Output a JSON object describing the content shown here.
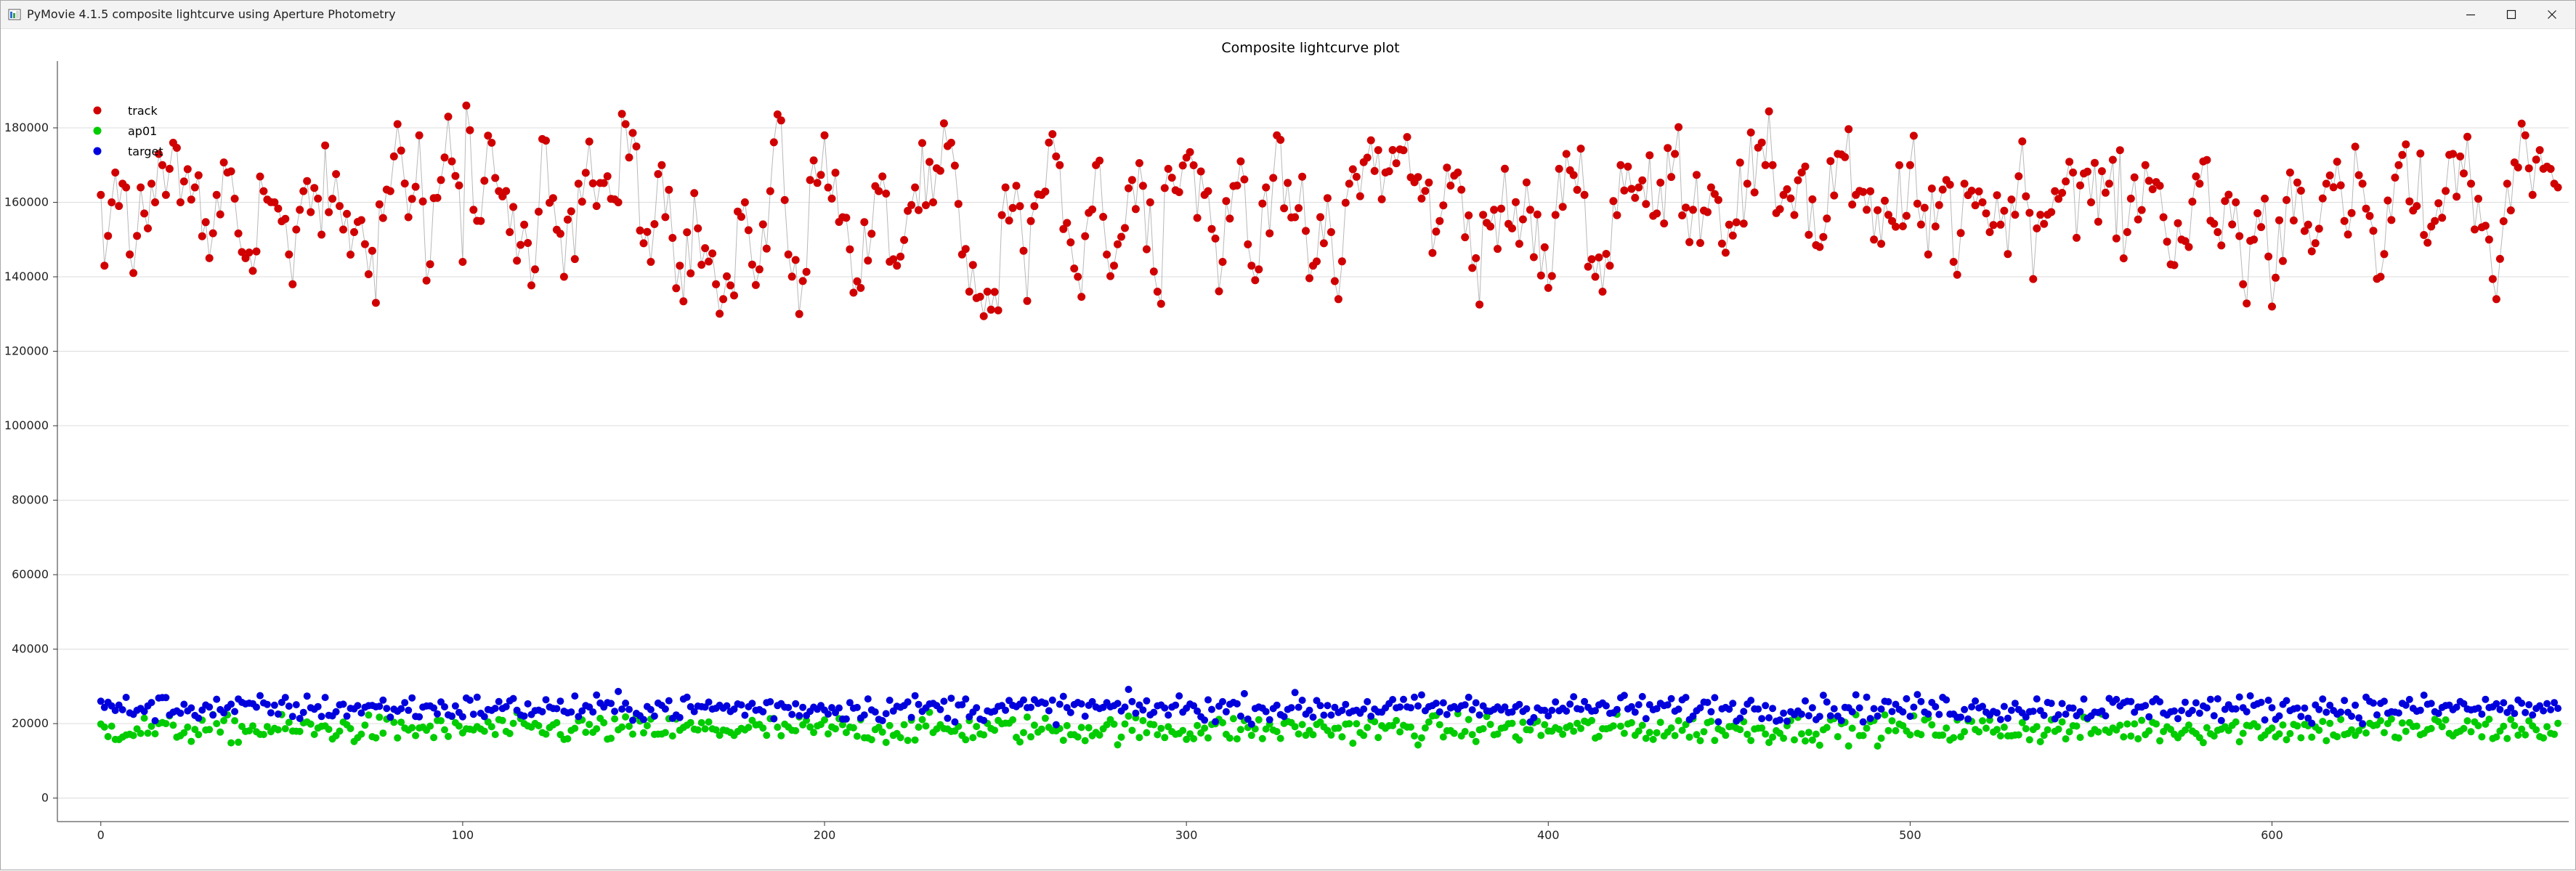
{
  "window": {
    "title": "PyMovie 4.1.5 composite lightcurve using Aperture Photometry",
    "minimize_icon": "minimize-icon",
    "maximize_icon": "maximize-icon",
    "close_icon": "close-icon",
    "app_icon": "pymovie-app-icon"
  },
  "chart_data": {
    "type": "scatter",
    "title": "Composite lightcurve plot",
    "xlabel": "",
    "ylabel": "",
    "xlim": [
      -12,
      682
    ],
    "ylim": [
      -3000,
      196000
    ],
    "xticks": [
      0,
      100,
      200,
      300,
      400,
      500,
      600
    ],
    "xtick_labels": [
      "0",
      "100",
      "200",
      "300",
      "400",
      "500",
      "600"
    ],
    "yticks": [
      0,
      20000,
      40000,
      60000,
      80000,
      100000,
      120000,
      140000,
      160000,
      180000
    ],
    "ytick_labels": [
      "0",
      "20000",
      "40000",
      "60000",
      "80000",
      "100000",
      "120000",
      "140000",
      "160000",
      "180000"
    ],
    "grid": "horizontal",
    "legend_position": "top-left",
    "x_start": 0,
    "x_count": 680,
    "series": [
      {
        "name": "track",
        "color": "#d00000",
        "connect_line": true,
        "line_color": "#b8b8b8",
        "anchors": [
          [
            0,
            162000
          ],
          [
            1,
            143000
          ],
          [
            2,
            151000
          ],
          [
            3,
            160000
          ],
          [
            4,
            168000
          ],
          [
            5,
            159000
          ],
          [
            6,
            165000
          ],
          [
            7,
            164000
          ],
          [
            8,
            146000
          ],
          [
            9,
            141000
          ],
          [
            10,
            151000
          ],
          [
            11,
            164000
          ],
          [
            12,
            157000
          ],
          [
            13,
            153000
          ],
          [
            14,
            165000
          ],
          [
            15,
            160000
          ],
          [
            16,
            173000
          ],
          [
            17,
            170000
          ],
          [
            18,
            162000
          ],
          [
            19,
            169000
          ],
          [
            20,
            176000
          ],
          [
            22,
            160000
          ],
          [
            26,
            164000
          ],
          [
            30,
            145000
          ],
          [
            32,
            162000
          ],
          [
            35,
            168000
          ],
          [
            40,
            145000
          ],
          [
            45,
            163000
          ],
          [
            48,
            160000
          ],
          [
            52,
            146000
          ],
          [
            53,
            138000
          ],
          [
            56,
            163000
          ],
          [
            60,
            161000
          ],
          [
            66,
            159000
          ],
          [
            70,
            152000
          ],
          [
            75,
            147000
          ],
          [
            80,
            163000
          ],
          [
            82,
            181000
          ],
          [
            85,
            156000
          ],
          [
            88,
            178000
          ],
          [
            90,
            139000
          ],
          [
            94,
            166000
          ],
          [
            96,
            183000
          ],
          [
            100,
            144000
          ],
          [
            101,
            186000
          ],
          [
            103,
            158000
          ],
          [
            105,
            155000
          ],
          [
            108,
            176000
          ],
          [
            110,
            163000
          ],
          [
            113,
            152000
          ],
          [
            117,
            154000
          ],
          [
            120,
            142000
          ],
          [
            122,
            177000
          ],
          [
            128,
            140000
          ],
          [
            132,
            165000
          ],
          [
            137,
            159000
          ],
          [
            140,
            167000
          ],
          [
            143,
            160000
          ],
          [
            145,
            181000
          ],
          [
            148,
            175000
          ],
          [
            150,
            149000
          ],
          [
            155,
            170000
          ],
          [
            160,
            143000
          ],
          [
            165,
            153000
          ],
          [
            170,
            138000
          ],
          [
            172,
            134000
          ],
          [
            175,
            135000
          ],
          [
            178,
            160000
          ],
          [
            182,
            142000
          ],
          [
            185,
            163000
          ],
          [
            188,
            182000
          ],
          [
            190,
            146000
          ],
          [
            193,
            130000
          ],
          [
            196,
            166000
          ],
          [
            200,
            178000
          ],
          [
            202,
            161000
          ],
          [
            205,
            156000
          ],
          [
            210,
            137000
          ],
          [
            215,
            163000
          ],
          [
            220,
            143000
          ],
          [
            225,
            164000
          ],
          [
            230,
            160000
          ],
          [
            235,
            176000
          ],
          [
            238,
            146000
          ],
          [
            240,
            136000
          ],
          [
            245,
            136000
          ],
          [
            248,
            131000
          ],
          [
            250,
            164000
          ],
          [
            255,
            147000
          ],
          [
            260,
            162000
          ],
          [
            265,
            170000
          ],
          [
            270,
            140000
          ],
          [
            275,
            170000
          ],
          [
            280,
            143000
          ],
          [
            285,
            166000
          ],
          [
            290,
            160000
          ],
          [
            292,
            136000
          ],
          [
            295,
            169000
          ],
          [
            300,
            172000
          ],
          [
            305,
            162000
          ],
          [
            310,
            144000
          ],
          [
            315,
            171000
          ],
          [
            318,
            143000
          ],
          [
            320,
            142000
          ],
          [
            322,
            164000
          ],
          [
            325,
            178000
          ],
          [
            330,
            156000
          ],
          [
            335,
            143000
          ],
          [
            340,
            152000
          ],
          [
            342,
            134000
          ],
          [
            345,
            165000
          ],
          [
            350,
            172000
          ],
          [
            355,
            168000
          ],
          [
            360,
            174000
          ],
          [
            365,
            161000
          ],
          [
            370,
            155000
          ],
          [
            375,
            168000
          ],
          [
            380,
            145000
          ],
          [
            385,
            158000
          ],
          [
            390,
            153000
          ],
          [
            395,
            158000
          ],
          [
            400,
            137000
          ],
          [
            405,
            173000
          ],
          [
            410,
            162000
          ],
          [
            415,
            136000
          ],
          [
            420,
            170000
          ],
          [
            425,
            164000
          ],
          [
            430,
            157000
          ],
          [
            435,
            173000
          ],
          [
            440,
            158000
          ],
          [
            445,
            164000
          ],
          [
            450,
            154000
          ],
          [
            455,
            165000
          ],
          [
            460,
            170000
          ],
          [
            465,
            162000
          ],
          [
            470,
            168000
          ],
          [
            475,
            148000
          ],
          [
            480,
            173000
          ],
          [
            485,
            162000
          ],
          [
            488,
            158000
          ],
          [
            490,
            150000
          ],
          [
            495,
            155000
          ],
          [
            500,
            170000
          ],
          [
            505,
            146000
          ],
          [
            510,
            166000
          ],
          [
            512,
            144000
          ],
          [
            515,
            165000
          ],
          [
            520,
            160000
          ],
          [
            525,
            154000
          ],
          [
            530,
            167000
          ],
          [
            535,
            153000
          ],
          [
            540,
            163000
          ],
          [
            545,
            168000
          ],
          [
            550,
            160000
          ],
          [
            555,
            165000
          ],
          [
            560,
            152000
          ],
          [
            565,
            170000
          ],
          [
            570,
            156000
          ],
          [
            575,
            150000
          ],
          [
            580,
            165000
          ],
          [
            585,
            152000
          ],
          [
            590,
            160000
          ],
          [
            592,
            138000
          ],
          [
            595,
            150000
          ],
          [
            598,
            161000
          ],
          [
            600,
            132000
          ],
          [
            605,
            168000
          ],
          [
            610,
            154000
          ],
          [
            615,
            165000
          ],
          [
            620,
            155000
          ],
          [
            625,
            165000
          ],
          [
            630,
            140000
          ],
          [
            635,
            170000
          ],
          [
            640,
            159000
          ],
          [
            645,
            155000
          ],
          [
            650,
            173000
          ],
          [
            655,
            165000
          ],
          [
            660,
            150000
          ],
          [
            662,
            134000
          ],
          [
            665,
            165000
          ],
          [
            670,
            178000
          ],
          [
            672,
            162000
          ],
          [
            675,
            169000
          ],
          [
            678,
            165000
          ],
          [
            679,
            164000
          ]
        ]
      },
      {
        "name": "ap01",
        "color": "#00cc00",
        "connect_line": false,
        "mean": 18500,
        "spread": 1800
      },
      {
        "name": "target",
        "color": "#0000dd",
        "connect_line": false,
        "mean": 24200,
        "spread": 1700
      }
    ],
    "legend": [
      {
        "label": "track",
        "color": "#d00000"
      },
      {
        "label": "ap01",
        "color": "#00cc00"
      },
      {
        "label": "target",
        "color": "#0000dd"
      }
    ]
  }
}
